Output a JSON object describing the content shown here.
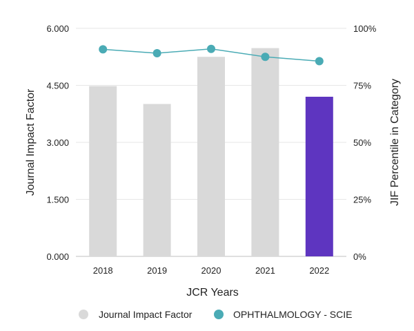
{
  "chart_data": {
    "type": "bar",
    "categories": [
      "2018",
      "2019",
      "2020",
      "2021",
      "2022"
    ],
    "series": [
      {
        "name": "Journal Impact Factor",
        "kind": "bar",
        "axis": "left",
        "values": [
          4.48,
          4.01,
          5.25,
          5.48,
          4.2
        ],
        "color": "#d9d9d9",
        "highlight_color": "#5e35c0",
        "highlight_index": 4
      },
      {
        "name": "OPHTHALMOLOGY - SCIE",
        "kind": "line",
        "axis": "right",
        "values": [
          90.8,
          89.1,
          91.0,
          87.5,
          85.6
        ],
        "color": "#4aabb5"
      }
    ],
    "xlabel": "JCR Years",
    "ylabel": "Journal Impact Factor",
    "y2label": "JIF Percentile in Category",
    "ylim": [
      0,
      6
    ],
    "y2lim": [
      0,
      100
    ],
    "y_ticks": [
      "0.000",
      "1.500",
      "3.000",
      "4.500",
      "6.000"
    ],
    "y2_ticks": [
      "0%",
      "25%",
      "50%",
      "75%",
      "100%"
    ],
    "grid": true,
    "legend": "bottom"
  }
}
